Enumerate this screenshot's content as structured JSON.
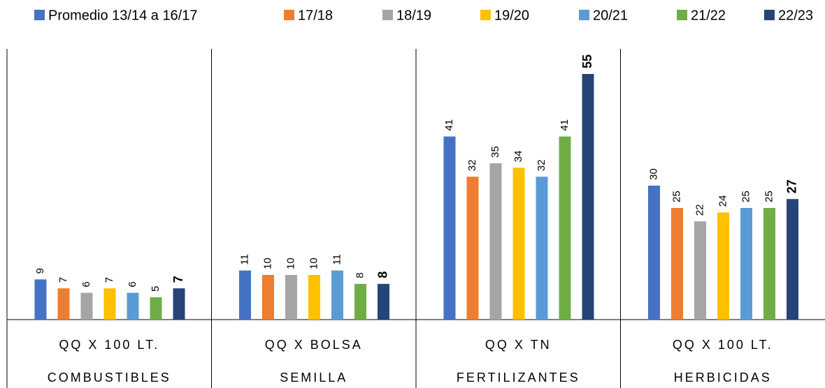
{
  "chart_data": {
    "type": "bar",
    "categories": [
      "COMBUSTIBLES",
      "SEMILLA",
      "FERTILIZANTES",
      "HERBICIDAS"
    ],
    "sub_categories": [
      "QQ X 100 LT.",
      "QQ X BOLSA",
      "QQ X TN",
      "QQ X 100 LT."
    ],
    "series": [
      {
        "name": "Promedio 13/14 a 16/17",
        "color": "#4472c4",
        "values": [
          9,
          11,
          41,
          30
        ]
      },
      {
        "name": "17/18",
        "color": "#ed7d31",
        "values": [
          7,
          10,
          32,
          25
        ]
      },
      {
        "name": "18/19",
        "color": "#a5a5a5",
        "values": [
          6,
          10,
          35,
          22
        ]
      },
      {
        "name": "19/20",
        "color": "#ffc000",
        "values": [
          7,
          10,
          34,
          24
        ]
      },
      {
        "name": "20/21",
        "color": "#5b9bd5",
        "values": [
          6,
          11,
          32,
          25
        ]
      },
      {
        "name": "21/22",
        "color": "#70ad47",
        "values": [
          5,
          8,
          41,
          25
        ]
      },
      {
        "name": "22/23",
        "color": "#264478",
        "values": [
          7,
          8,
          55,
          27
        ]
      }
    ]
  }
}
